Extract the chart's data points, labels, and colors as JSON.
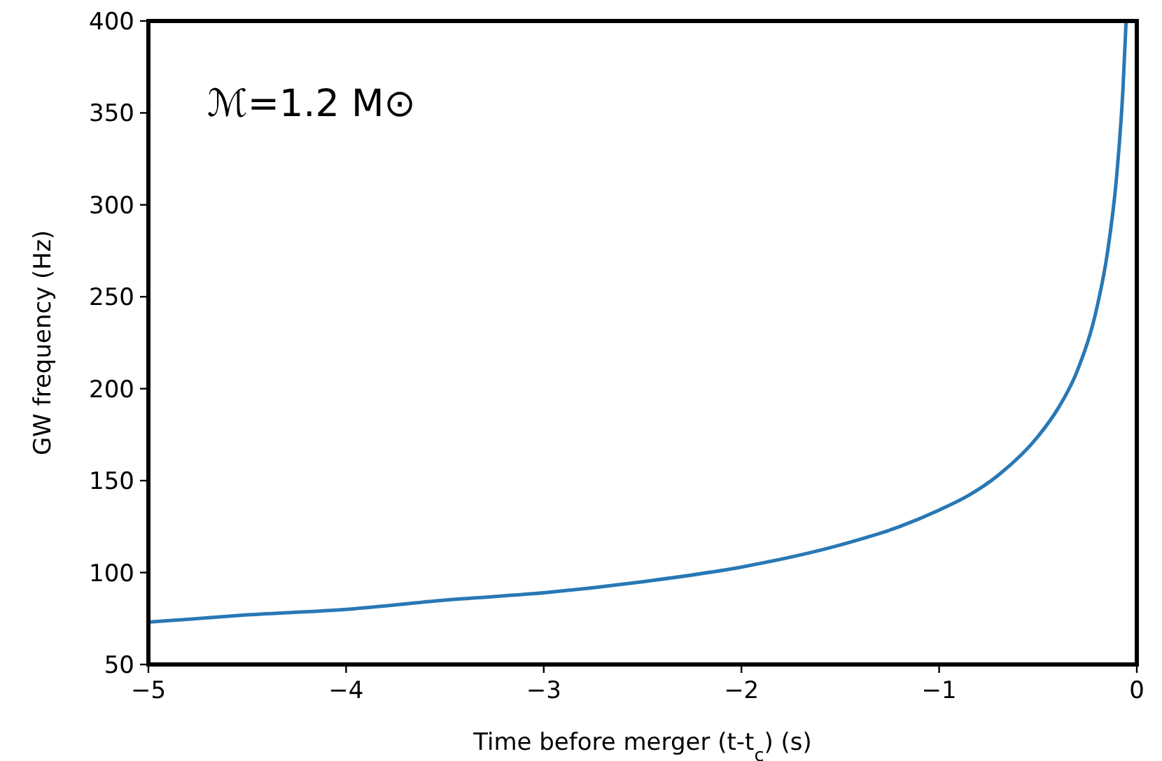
{
  "chart_data": {
    "type": "line",
    "xlabel": "Time before merger (t-t$_{c}$) (s)",
    "ylabel": "GW frequency (Hz)",
    "annotations": [
      "ℳ=1.2 M⊙"
    ],
    "x": [
      -5,
      -4.5,
      -4,
      -3.5,
      -3,
      -2.5,
      -2,
      -1.5,
      -1.2,
      -1,
      -0.85,
      -0.7,
      -0.5,
      -0.4,
      -0.3,
      -0.2,
      -0.15,
      -0.1,
      -0.07,
      -0.054
    ],
    "series": [
      {
        "color": "#2878b5",
        "values": [
          73,
          77,
          80,
          85,
          89,
          95,
          103,
          115,
          125,
          134,
          142,
          153,
          174,
          189,
          210,
          245,
          273,
          318,
          363,
          400
        ]
      }
    ],
    "xlim": [
      -5,
      0
    ],
    "xticks": [
      {
        "value": -5,
        "label": "−5"
      },
      {
        "value": -4,
        "label": "−4"
      },
      {
        "value": -3,
        "label": "−3"
      },
      {
        "value": -2,
        "label": "−2"
      },
      {
        "value": -1,
        "label": "−1"
      },
      0
    ],
    "ylim": [
      50,
      400
    ],
    "yticks": [
      50,
      100,
      150,
      200,
      250,
      300,
      350,
      400
    ],
    "grid": false,
    "marker": "none",
    "line_style": "solid"
  }
}
